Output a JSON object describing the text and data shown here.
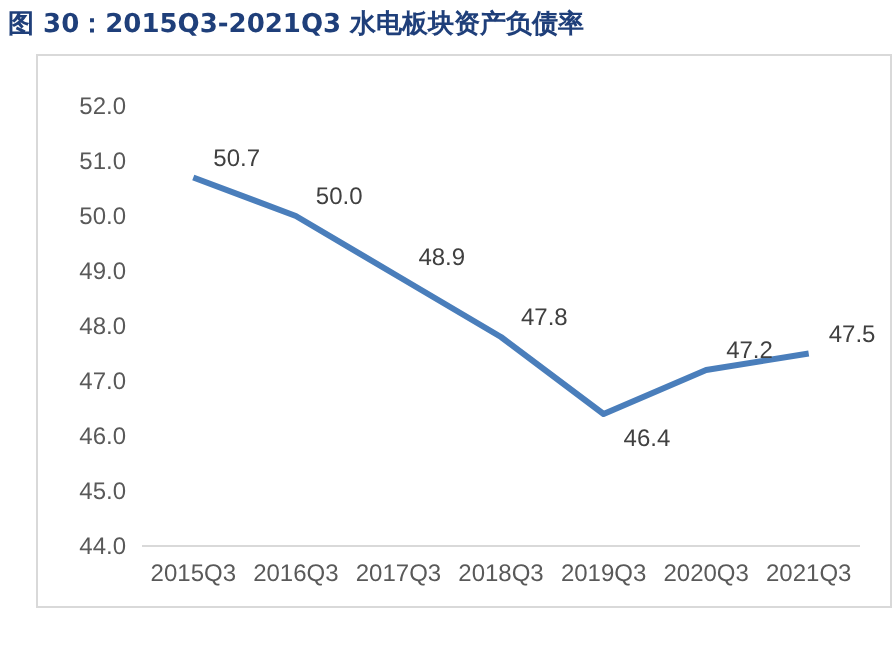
{
  "chart_data": {
    "type": "line",
    "title": "图 30：2015Q3-2021Q3 水电板块资产负债率",
    "categories": [
      "2015Q3",
      "2016Q3",
      "2017Q3",
      "2018Q3",
      "2019Q3",
      "2020Q3",
      "2021Q3"
    ],
    "series": [
      {
        "color": "#4a7ebb",
        "values": [
          50.7,
          50.0,
          48.9,
          47.8,
          46.4,
          47.2,
          47.5
        ],
        "value_labels": [
          "50.7",
          "50.0",
          "48.9",
          "47.8",
          "46.4",
          "47.2",
          "47.5"
        ]
      }
    ],
    "ylim": [
      44,
      52
    ],
    "yticks": [
      {
        "value": 44,
        "label": "44.0"
      },
      {
        "value": 45,
        "label": "45.0"
      },
      {
        "value": 46,
        "label": "46.0"
      },
      {
        "value": 47,
        "label": "47.0"
      },
      {
        "value": 48,
        "label": "48.0"
      },
      {
        "value": 49,
        "label": "49.0"
      },
      {
        "value": 50,
        "label": "50.0"
      },
      {
        "value": 51,
        "label": "51.0"
      },
      {
        "value": 52,
        "label": "52.0"
      }
    ],
    "grid": false,
    "marker": "none",
    "line_style": "solid"
  }
}
